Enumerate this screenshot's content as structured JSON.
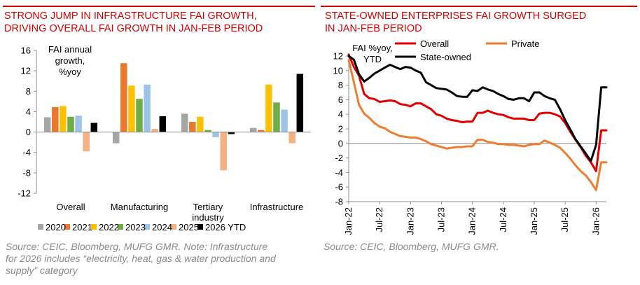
{
  "chart_data": [
    {
      "type": "bar",
      "title_line1": "STRONG JUMP IN INFRASTRUCTURE FAI GROWTH,",
      "title_line2": "DRIVING OVERALL FAI GROWTH IN JAN-FEB PERIOD",
      "ylabel_line1": "FAI annual",
      "ylabel_line2": "growth,",
      "ylabel_line3": "%yoy",
      "ylim": [
        -12,
        16
      ],
      "yticks": [
        "16",
        "12",
        "8",
        "4",
        "0",
        "-4",
        "-8",
        "-12"
      ],
      "categories": [
        "Overall",
        "Manufacturing",
        "Tertiary",
        "Infrastructure"
      ],
      "category_sub": [
        "",
        "",
        "industry",
        ""
      ],
      "series": [
        {
          "name": "2020",
          "color": "#a6a6a6",
          "values": [
            2.9,
            -2.2,
            3.6,
            0.8
          ]
        },
        {
          "name": "2021",
          "color": "#e8792f",
          "values": [
            4.9,
            13.5,
            2.0,
            0.4
          ]
        },
        {
          "name": "2022",
          "color": "#ffc000",
          "values": [
            5.1,
            9.1,
            3.0,
            9.3
          ]
        },
        {
          "name": "2023",
          "color": "#70ad47",
          "values": [
            3.0,
            6.5,
            0.4,
            5.8
          ]
        },
        {
          "name": "2024",
          "color": "#9dc3e6",
          "values": [
            3.2,
            9.3,
            -1.0,
            4.4
          ]
        },
        {
          "name": "2025",
          "color": "#f4b183",
          "values": [
            -3.8,
            0.6,
            -7.5,
            -2.2
          ]
        },
        {
          "name": "2026 YTD",
          "color": "#000000",
          "values": [
            1.8,
            3.1,
            -0.4,
            11.4
          ]
        }
      ],
      "source_line1": "Source: CEIC, Bloomberg, MUFG GMR. Note: Infrastructure",
      "source_line2": "for 2026 includes “electricity, heat, gas & water production and",
      "source_line3": "supply” category"
    },
    {
      "type": "line",
      "title_line1": "STATE-OWNED ENTERPRISES FAI GROWTH SURGED",
      "title_line2": "IN JAN-FEB PERIOD",
      "ylabel_line1": "FAI %yoy,",
      "ylabel_line2": "YTD",
      "ylim": [
        -8,
        12
      ],
      "yticks": [
        "12",
        "10",
        "8",
        "6",
        "4",
        "2",
        "0",
        "-2",
        "-4",
        "-6",
        "-8"
      ],
      "xticks": [
        "Jan-22",
        "Jul-22",
        "Jan-23",
        "Jul-23",
        "Jan-24",
        "Jul-24",
        "Jan-25",
        "Jul-25",
        "Jan-26"
      ],
      "x_start": "Jan-22",
      "x_end": "Feb-26",
      "series": [
        {
          "name": "Overall",
          "color": "#e00000",
          "values": [
            12.2,
            10.5,
            9.3,
            6.8,
            6.2,
            6.1,
            5.7,
            5.8,
            5.9,
            5.8,
            5.4,
            5.3,
            5.1,
            5.5,
            5.5,
            5.1,
            4.7,
            4.0,
            3.8,
            3.4,
            3.2,
            3.1,
            2.9,
            3.0,
            3.0,
            4.2,
            4.2,
            4.5,
            4.2,
            4.0,
            3.9,
            3.6,
            3.4,
            3.4,
            3.4,
            3.2,
            3.2,
            4.1,
            4.2,
            4.2,
            4.0,
            3.7,
            2.8,
            1.6,
            0.5,
            -0.5,
            -1.7,
            -2.6,
            -3.8,
            1.8,
            1.8
          ]
        },
        {
          "name": "Private",
          "color": "#ed7d31",
          "values": [
            11.4,
            8.4,
            5.3,
            4.1,
            3.5,
            2.8,
            2.3,
            2.1,
            1.6,
            1.3,
            1.0,
            0.9,
            0.8,
            0.8,
            0.6,
            0.3,
            -0.1,
            -0.3,
            -0.5,
            -0.7,
            -0.6,
            -0.5,
            -0.5,
            -0.4,
            -0.4,
            0.5,
            0.5,
            0.2,
            0.1,
            -0.1,
            -0.1,
            -0.2,
            -0.2,
            -0.3,
            -0.4,
            -0.2,
            -0.1,
            -0.1,
            0.4,
            0.1,
            -0.2,
            -0.6,
            -1.3,
            -2.1,
            -3.0,
            -3.8,
            -4.4,
            -5.3,
            -6.4,
            -2.6,
            -2.6
          ]
        },
        {
          "name": "State-owned",
          "color": "#000000",
          "values": [
            12.0,
            11.5,
            9.5,
            8.5,
            9.0,
            9.6,
            10.0,
            10.4,
            10.8,
            10.5,
            10.2,
            10.5,
            10.4,
            10.0,
            9.7,
            8.4,
            8.0,
            7.6,
            7.5,
            7.4,
            7.0,
            6.5,
            6.4,
            6.4,
            7.3,
            7.2,
            7.7,
            7.4,
            7.2,
            6.8,
            6.5,
            6.1,
            6.0,
            6.2,
            6.2,
            5.8,
            7.0,
            7.0,
            6.5,
            6.2,
            6.0,
            4.7,
            3.2,
            1.9,
            0.6,
            -0.4,
            -1.4,
            -2.4,
            -0.2,
            7.7,
            7.7
          ]
        }
      ],
      "source": "Source: CEIC, Bloomberg, MUFG GMR."
    }
  ]
}
